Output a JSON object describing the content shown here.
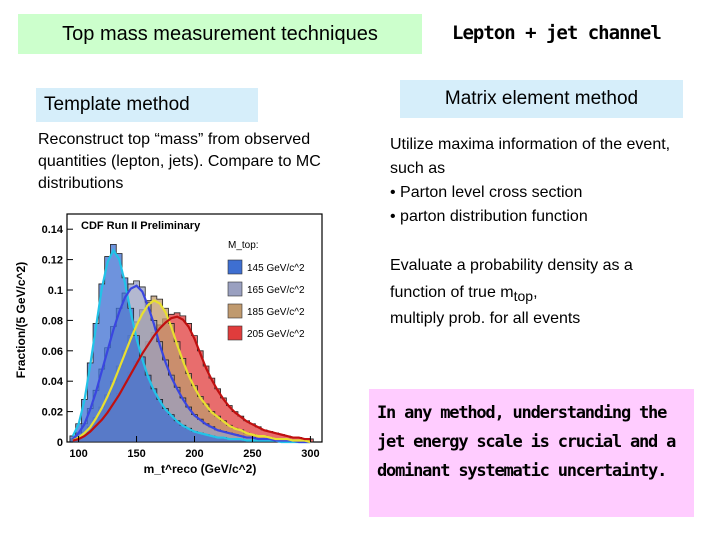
{
  "slide": {
    "title": "Top mass measurement techniques",
    "channel": "Lepton + jet channel"
  },
  "template": {
    "heading": "Template method",
    "description": "Reconstruct top “mass” from observed quantities (lepton, jets). Compare to MC distributions"
  },
  "matrix": {
    "heading": "Matrix element method",
    "intro": "Utilize maxima information of the event, such as",
    "bullets": [
      "• Parton level cross section",
      "• parton distribution function"
    ],
    "pdf_line1": "Evaluate a probability density as a",
    "pdf_line2_prefix": "function of true m",
    "pdf_line2_sub": "top",
    "pdf_line2_suffix": ",",
    "pdf_line3": "multiply prob. for all events"
  },
  "conclusion": {
    "text": "In any method, understanding the jet energy scale is crucial and a dominant systematic uncertainty."
  },
  "chart_data": {
    "type": "line",
    "title": "CDF Run II Preliminary",
    "legend_title": "M_top:",
    "legend_placement": "top-right",
    "xlabel": "m_t^reco (GeV/c^2)",
    "ylabel": "Fraction/(5 GeV/c^2)",
    "xlim": [
      90,
      310
    ],
    "ylim": [
      0,
      0.15
    ],
    "x_ticks": [
      "100",
      "150",
      "200",
      "250",
      "300"
    ],
    "y_ticks": [
      "0",
      "0.02",
      "0.04",
      "0.06",
      "0.08",
      "0.1",
      "0.12",
      "0.14"
    ],
    "series": [
      {
        "name": "145 GeV/c^2",
        "style": "histogram",
        "fill": "#3e6fd1",
        "fit": "#22c3e8",
        "x": [
          95,
          100,
          105,
          110,
          115,
          120,
          125,
          130,
          135,
          140,
          145,
          150,
          155,
          160,
          165,
          170,
          175,
          180,
          185,
          190,
          195,
          200,
          205,
          210,
          215,
          220,
          225,
          230,
          235,
          240,
          245,
          250,
          255,
          260,
          265,
          270,
          275,
          280,
          285,
          290,
          295,
          300
        ],
        "values": [
          0.004,
          0.012,
          0.028,
          0.052,
          0.078,
          0.104,
          0.122,
          0.13,
          0.124,
          0.108,
          0.088,
          0.07,
          0.056,
          0.044,
          0.035,
          0.028,
          0.022,
          0.018,
          0.014,
          0.011,
          0.009,
          0.007,
          0.006,
          0.005,
          0.004,
          0.003,
          0.003,
          0.002,
          0.002,
          0.002,
          0.001,
          0.001,
          0.001,
          0.001,
          0.001,
          0.001,
          0,
          0,
          0,
          0,
          0,
          0
        ]
      },
      {
        "name": "165 GeV/c^2",
        "style": "histogram",
        "fill": "#9aa0c0",
        "fit": "#3a46e0",
        "x": [
          95,
          100,
          105,
          110,
          115,
          120,
          125,
          130,
          135,
          140,
          145,
          150,
          155,
          160,
          165,
          170,
          175,
          180,
          185,
          190,
          195,
          200,
          205,
          210,
          215,
          220,
          225,
          230,
          235,
          240,
          245,
          250,
          255,
          260,
          265,
          270,
          275,
          280,
          285,
          290,
          295,
          300
        ],
        "values": [
          0.002,
          0.006,
          0.012,
          0.022,
          0.034,
          0.048,
          0.062,
          0.076,
          0.088,
          0.098,
          0.104,
          0.106,
          0.102,
          0.092,
          0.08,
          0.066,
          0.054,
          0.044,
          0.036,
          0.029,
          0.023,
          0.018,
          0.015,
          0.012,
          0.01,
          0.008,
          0.007,
          0.006,
          0.005,
          0.004,
          0.003,
          0.003,
          0.002,
          0.002,
          0.002,
          0.001,
          0.001,
          0.001,
          0.001,
          0,
          0,
          0
        ]
      },
      {
        "name": "185 GeV/c^2",
        "style": "histogram",
        "fill": "#c09a6e",
        "fit": "#e8e030",
        "x": [
          95,
          100,
          105,
          110,
          115,
          120,
          125,
          130,
          135,
          140,
          145,
          150,
          155,
          160,
          165,
          170,
          175,
          180,
          185,
          190,
          195,
          200,
          205,
          210,
          215,
          220,
          225,
          230,
          235,
          240,
          245,
          250,
          255,
          260,
          265,
          270,
          275,
          280,
          285,
          290,
          295,
          300
        ],
        "values": [
          0.001,
          0.003,
          0.006,
          0.01,
          0.016,
          0.023,
          0.031,
          0.04,
          0.05,
          0.06,
          0.07,
          0.079,
          0.087,
          0.093,
          0.096,
          0.094,
          0.088,
          0.078,
          0.066,
          0.055,
          0.045,
          0.037,
          0.03,
          0.025,
          0.02,
          0.017,
          0.014,
          0.011,
          0.009,
          0.008,
          0.006,
          0.005,
          0.004,
          0.004,
          0.003,
          0.002,
          0.002,
          0.002,
          0.001,
          0.001,
          0.001,
          0
        ]
      },
      {
        "name": "205 GeV/c^2",
        "style": "histogram",
        "fill": "#e03c3c",
        "fit": "#c01010",
        "x": [
          95,
          100,
          105,
          110,
          115,
          120,
          125,
          130,
          135,
          140,
          145,
          150,
          155,
          160,
          165,
          170,
          175,
          180,
          185,
          190,
          195,
          200,
          205,
          210,
          215,
          220,
          225,
          230,
          235,
          240,
          245,
          250,
          255,
          260,
          265,
          270,
          275,
          280,
          285,
          290,
          295,
          300
        ],
        "values": [
          0.001,
          0.002,
          0.004,
          0.007,
          0.011,
          0.015,
          0.02,
          0.026,
          0.032,
          0.039,
          0.046,
          0.053,
          0.06,
          0.066,
          0.072,
          0.077,
          0.081,
          0.084,
          0.085,
          0.083,
          0.078,
          0.07,
          0.06,
          0.05,
          0.042,
          0.035,
          0.029,
          0.024,
          0.02,
          0.017,
          0.014,
          0.012,
          0.01,
          0.008,
          0.007,
          0.006,
          0.005,
          0.004,
          0.003,
          0.003,
          0.002,
          0.002
        ]
      }
    ]
  }
}
